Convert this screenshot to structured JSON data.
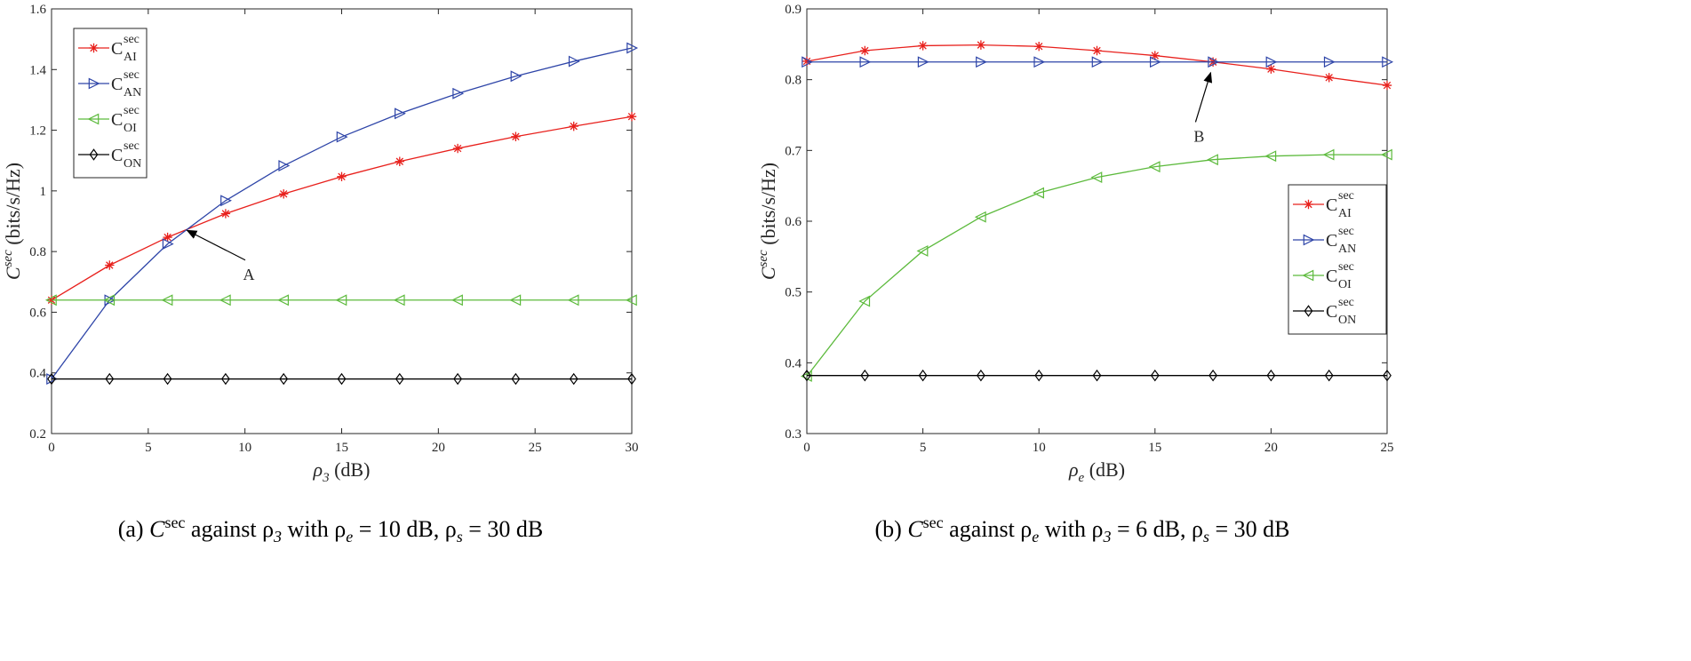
{
  "chart_data": [
    {
      "type": "line",
      "panel": "a",
      "xlabel_symbol": "ρ",
      "xlabel_sub": "3",
      "xlabel_unit": "(dB)",
      "ylabel_symbol": "C",
      "ylabel_sup": "sec",
      "ylabel_unit": "(bits/s/Hz)",
      "xlim": [
        0,
        30
      ],
      "ylim": [
        0.2,
        1.6
      ],
      "xticks": [
        0,
        5,
        10,
        15,
        20,
        25,
        30
      ],
      "xtick_labels": [
        "0",
        "5",
        "10",
        "15",
        "20",
        "25",
        "30"
      ],
      "yticks": [
        0.2,
        0.4,
        0.6,
        0.8,
        1.0,
        1.2,
        1.4,
        1.6
      ],
      "ytick_labels": [
        "0.2",
        "0.4",
        "0.6",
        "0.8",
        "1",
        "1.2",
        "1.4",
        "1.6"
      ],
      "legend_position": "top-left",
      "x": [
        0,
        3,
        6,
        9,
        12,
        15,
        18,
        21,
        24,
        27,
        30
      ],
      "series": [
        {
          "name": "C_AI^sec",
          "label_main": "C",
          "label_sup": "sec",
          "label_sub": "AI",
          "color": "#e8201c",
          "marker": "star",
          "values": [
            0.64,
            0.755,
            0.847,
            0.925,
            0.99,
            1.047,
            1.097,
            1.14,
            1.179,
            1.213,
            1.245
          ]
        },
        {
          "name": "C_AN^sec",
          "label_main": "C",
          "label_sup": "sec",
          "label_sub": "AN",
          "color": "#2e45a8",
          "marker": "triangle-right",
          "values": [
            0.38,
            0.64,
            0.825,
            0.968,
            1.083,
            1.178,
            1.255,
            1.321,
            1.378,
            1.427,
            1.471
          ]
        },
        {
          "name": "C_OI^sec",
          "label_main": "C",
          "label_sup": "sec",
          "label_sub": "OI",
          "color": "#5cba3c",
          "marker": "triangle-left",
          "values": [
            0.64,
            0.64,
            0.64,
            0.64,
            0.64,
            0.64,
            0.64,
            0.64,
            0.64,
            0.64,
            0.64
          ]
        },
        {
          "name": "C_ON^sec",
          "label_main": "C",
          "label_sup": "sec",
          "label_sub": "ON",
          "color": "#000000",
          "marker": "diamond",
          "values": [
            0.38,
            0.38,
            0.38,
            0.38,
            0.38,
            0.38,
            0.38,
            0.38,
            0.38,
            0.38,
            0.38
          ]
        }
      ],
      "annotation": {
        "text": "A",
        "point": [
          7.0,
          0.87
        ],
        "text_at": [
          10.2,
          0.725
        ]
      },
      "caption": {
        "prefix": "(a) ",
        "c": "C",
        "sup": "sec",
        "middle": " against ρ",
        "sub1": "3",
        "rest": " with ρ",
        "sub2": "e",
        "tail": " = 10 dB, ρ",
        "sub3": "s",
        "end": " = 30 dB"
      }
    },
    {
      "type": "line",
      "panel": "b",
      "xlabel_symbol": "ρ",
      "xlabel_sub": "e",
      "xlabel_unit": "(dB)",
      "ylabel_symbol": "C",
      "ylabel_sup": "sec",
      "ylabel_unit": "(bits/s/Hz)",
      "xlim": [
        0,
        25
      ],
      "ylim": [
        0.3,
        0.9
      ],
      "xticks": [
        0,
        5,
        10,
        15,
        20,
        25
      ],
      "xtick_labels": [
        "0",
        "5",
        "10",
        "15",
        "20",
        "25"
      ],
      "yticks": [
        0.3,
        0.4,
        0.5,
        0.6,
        0.7,
        0.8,
        0.9
      ],
      "ytick_labels": [
        "0.3",
        "0.4",
        "0.5",
        "0.6",
        "0.7",
        "0.8",
        "0.9"
      ],
      "legend_position": "right",
      "x": [
        0,
        2.5,
        5,
        7.5,
        10,
        12.5,
        15,
        17.5,
        20,
        22.5,
        25
      ],
      "series": [
        {
          "name": "C_AI^sec",
          "label_main": "C",
          "label_sup": "sec",
          "label_sub": "AI",
          "color": "#e8201c",
          "marker": "star",
          "values": [
            0.826,
            0.841,
            0.848,
            0.849,
            0.847,
            0.841,
            0.834,
            0.825,
            0.815,
            0.803,
            0.792
          ]
        },
        {
          "name": "C_AN^sec",
          "label_main": "C",
          "label_sup": "sec",
          "label_sub": "AN",
          "color": "#2e45a8",
          "marker": "triangle-right",
          "values": [
            0.825,
            0.825,
            0.825,
            0.825,
            0.825,
            0.825,
            0.825,
            0.825,
            0.825,
            0.825,
            0.825
          ]
        },
        {
          "name": "C_OI^sec",
          "label_main": "C",
          "label_sup": "sec",
          "label_sub": "OI",
          "color": "#5cba3c",
          "marker": "triangle-left",
          "values": [
            0.381,
            0.487,
            0.558,
            0.606,
            0.64,
            0.662,
            0.677,
            0.687,
            0.692,
            0.694,
            0.694
          ]
        },
        {
          "name": "C_ON^sec",
          "label_main": "C",
          "label_sup": "sec",
          "label_sub": "ON",
          "color": "#000000",
          "marker": "diamond",
          "values": [
            0.382,
            0.382,
            0.382,
            0.382,
            0.382,
            0.382,
            0.382,
            0.382,
            0.382,
            0.382,
            0.382
          ]
        }
      ],
      "annotation": {
        "text": "B",
        "point": [
          17.4,
          0.81
        ],
        "text_at": [
          16.9,
          0.72
        ]
      },
      "caption": {
        "prefix": "(b) ",
        "c": "C",
        "sup": "sec",
        "middle": " against ρ",
        "sub1": "e",
        "rest": " with ρ",
        "sub2": "3",
        "tail": " = 6 dB, ρ",
        "sub3": "s",
        "end": " = 30 dB"
      }
    }
  ]
}
